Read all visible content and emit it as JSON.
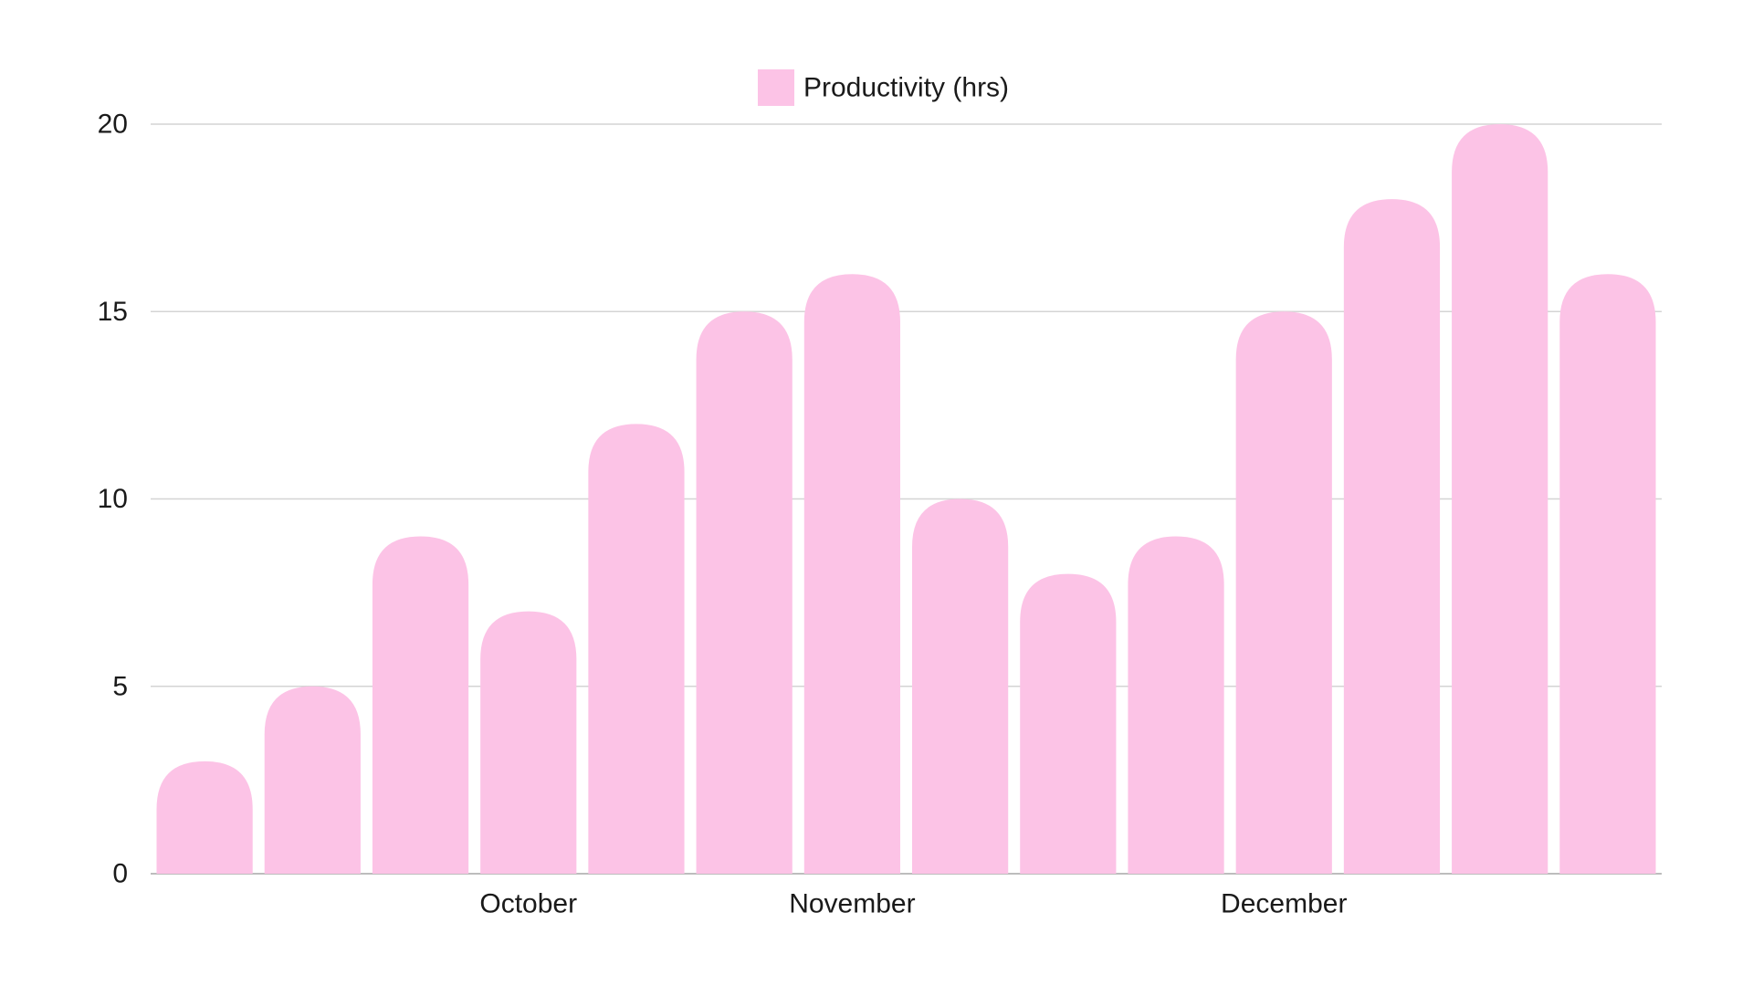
{
  "chart_data": {
    "type": "bar",
    "legend": {
      "position": "top-center",
      "entries": [
        {
          "name": "Productivity (hrs)",
          "color": "#fcc3e6"
        }
      ]
    },
    "series": [
      {
        "name": "Productivity (hrs)",
        "color": "#fcc3e6",
        "values": [
          3,
          5,
          9,
          7,
          12,
          15,
          16,
          10,
          8,
          9,
          15,
          18,
          20,
          16
        ]
      }
    ],
    "category_labels": [
      {
        "label": "October",
        "at_bar": 3.5
      },
      {
        "label": "November",
        "at_bar": 6.5
      },
      {
        "label": "December",
        "at_bar": 10.5
      }
    ],
    "ylim": [
      0,
      20
    ],
    "yticks": [
      0,
      5,
      10,
      15,
      20
    ],
    "grid": true,
    "bar_top_style": "rounded"
  }
}
